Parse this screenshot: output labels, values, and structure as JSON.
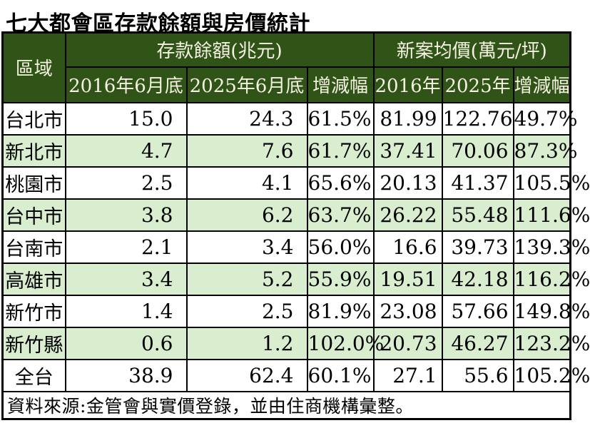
{
  "colors": {
    "header_bg": "#305418",
    "header_text": "#f4f1e1",
    "row_alt_bg": "#d9edcf",
    "border": "#000000",
    "title_text": "#000000"
  },
  "chart_data": {
    "type": "table",
    "title": "七大都會區存款餘額與房價統計",
    "region_header": "區域",
    "groups": [
      {
        "label": "存款餘額(兆元)",
        "subheaders": [
          "2016年6月底",
          "2025年6月底",
          "增減幅"
        ]
      },
      {
        "label": "新案均價(萬元/坪)",
        "subheaders": [
          "2016年",
          "2025年",
          "增減幅"
        ]
      }
    ],
    "rows": [
      {
        "region": "台北市",
        "cells": [
          "15.0",
          "24.3",
          "61.5%",
          "81.99",
          "122.76",
          "49.7%"
        ]
      },
      {
        "region": "新北市",
        "cells": [
          "4.7",
          "7.6",
          "61.7%",
          "37.41",
          "70.06",
          "87.3%"
        ]
      },
      {
        "region": "桃園市",
        "cells": [
          "2.5",
          "4.1",
          "65.6%",
          "20.13",
          "41.37",
          "105.5%"
        ]
      },
      {
        "region": "台中市",
        "cells": [
          "3.8",
          "6.2",
          "63.7%",
          "26.22",
          "55.48",
          "111.6%"
        ]
      },
      {
        "region": "台南市",
        "cells": [
          "2.1",
          "3.4",
          "56.0%",
          "16.6",
          "39.73",
          "139.3%"
        ]
      },
      {
        "region": "高雄市",
        "cells": [
          "3.4",
          "5.2",
          "55.9%",
          "19.51",
          "42.18",
          "116.2%"
        ]
      },
      {
        "region": "新竹市",
        "cells": [
          "1.4",
          "2.5",
          "81.9%",
          "23.08",
          "57.66",
          "149.8%"
        ]
      },
      {
        "region": "新竹縣",
        "cells": [
          "0.6",
          "1.2",
          "102.0%",
          "20.73",
          "46.27",
          "123.2%"
        ]
      },
      {
        "region": "全台",
        "cells": [
          "38.9",
          "62.4",
          "60.1%",
          "27.1",
          "55.6",
          "105.2%"
        ]
      }
    ],
    "source": "資料來源:金管會與實價登錄，並由住商機構彙整。"
  }
}
